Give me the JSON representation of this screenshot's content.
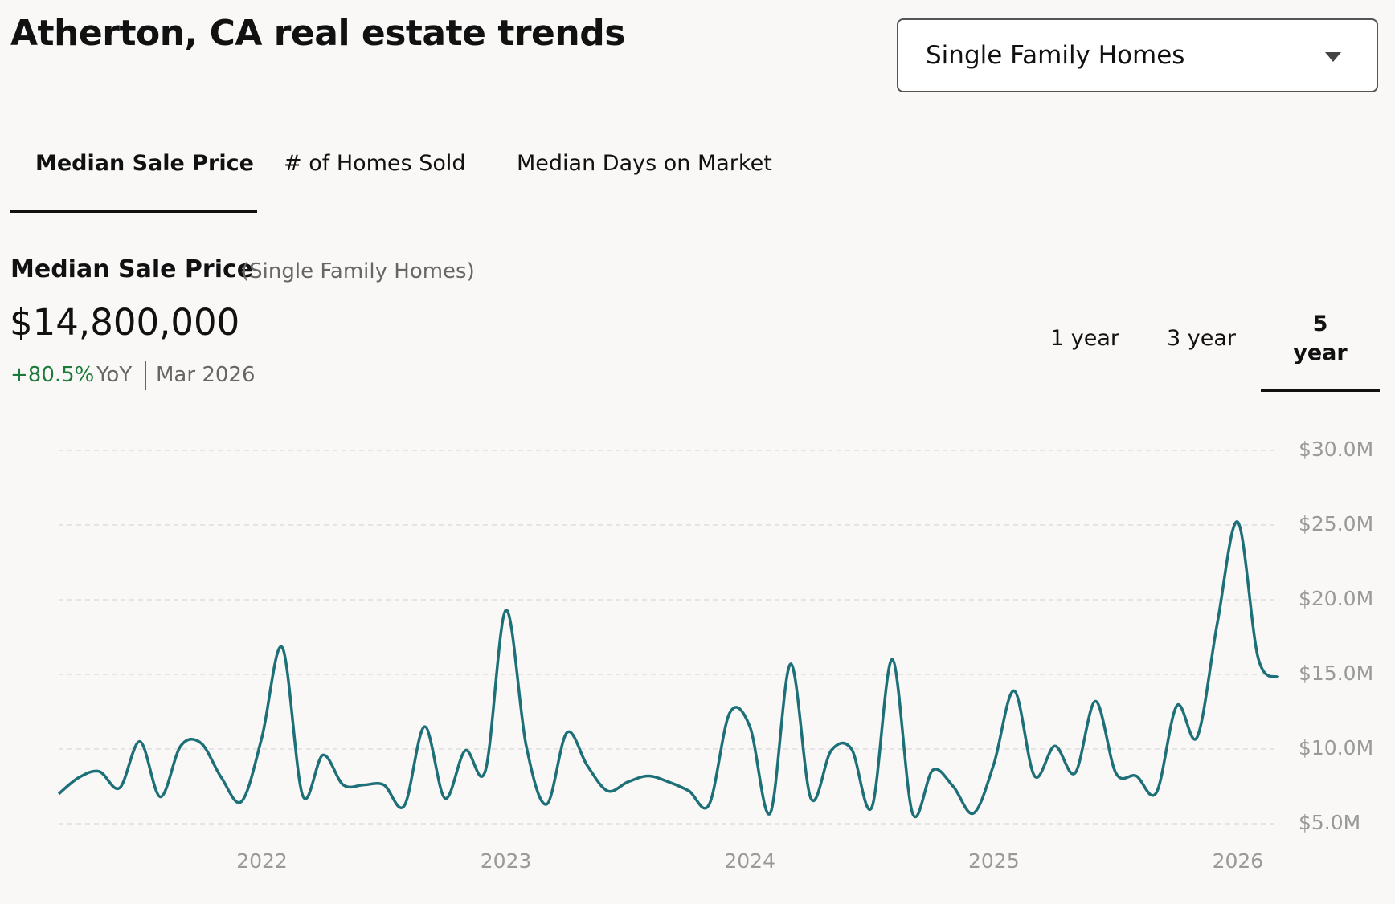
{
  "header": {
    "title": "Atherton, CA real estate trends",
    "dropdown": "Single Family Homes"
  },
  "tabs": [
    "Median Sale Price",
    "# of Homes Sold",
    "Median Days on Market"
  ],
  "summary": {
    "heading": "Median Sale Price",
    "subheading": "(Single Family Homes)",
    "price": "$14,800,000",
    "change": "+80.5%",
    "change_unit": "YoY",
    "date": "Mar 2026"
  },
  "ranges": [
    "1 year",
    "3 year",
    "5 year"
  ],
  "chart_data": {
    "type": "line",
    "categories": [
      null,
      null,
      null,
      null,
      null,
      null,
      null,
      null,
      null,
      null,
      "2022",
      null,
      null,
      null,
      null,
      null,
      null,
      null,
      null,
      null,
      null,
      null,
      "2023",
      null,
      null,
      null,
      null,
      null,
      null,
      null,
      null,
      null,
      null,
      null,
      "2024",
      null,
      null,
      null,
      null,
      null,
      null,
      null,
      null,
      null,
      null,
      null,
      "2025",
      null,
      null,
      null,
      null,
      null,
      null,
      null,
      null,
      null,
      null,
      null,
      "2026",
      null,
      null
    ],
    "series": [
      {
        "name": "Median Sale Price",
        "color": "#1d6f78",
        "values": [
          7000000,
          8100000,
          8500000,
          7400000,
          10500000,
          6800000,
          10200000,
          10400000,
          8100000,
          6500000,
          10800000,
          16800000,
          6900000,
          9600000,
          7600000,
          7600000,
          7600000,
          6200000,
          11500000,
          6700000,
          9900000,
          8600000,
          19300000,
          10200000,
          6300000,
          11100000,
          8900000,
          7200000,
          7800000,
          8200000,
          7800000,
          7200000,
          6300000,
          12400000,
          11500000,
          5700000,
          15700000,
          6700000,
          9900000,
          10000000,
          6100000,
          16000000,
          5700000,
          8600000,
          7500000,
          5700000,
          9000000,
          13900000,
          8200000,
          10200000,
          8400000,
          13200000,
          8400000,
          8200000,
          7100000,
          12900000,
          10800000,
          18500000,
          25200000,
          16100000,
          14800000
        ]
      }
    ],
    "ylim": [
      5000000,
      30000000
    ],
    "yticks": [
      {
        "value": 5000000,
        "label": "$5.0M"
      },
      {
        "value": 10000000,
        "label": "$10.0M"
      },
      {
        "value": 15000000,
        "label": "$15.0M"
      },
      {
        "value": 20000000,
        "label": "$20.0M"
      },
      {
        "value": 25000000,
        "label": "$25.0M"
      },
      {
        "value": 30000000,
        "label": "$30.0M"
      }
    ],
    "grid": true
  }
}
